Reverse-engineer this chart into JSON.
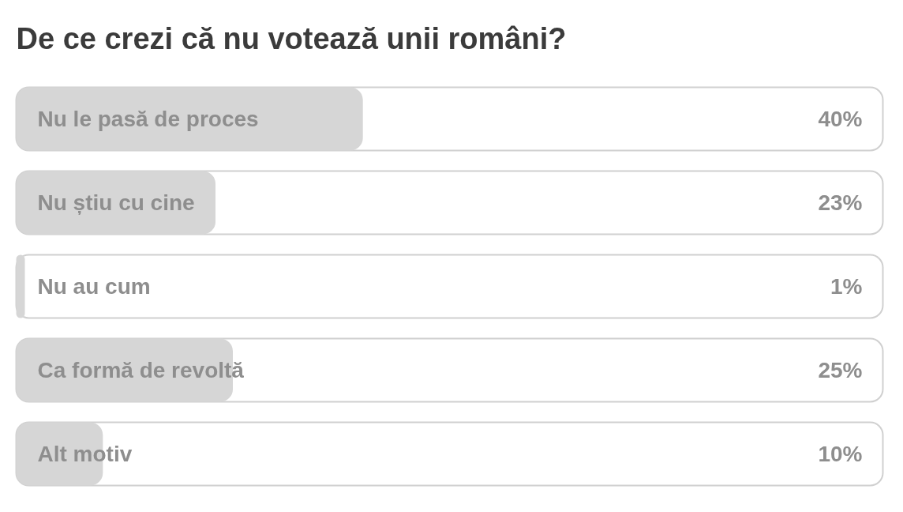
{
  "chart_data": {
    "type": "bar",
    "orientation": "horizontal",
    "title": "De ce crezi că nu votează unii români?",
    "categories": [
      "Nu le pasă de proces",
      "Nu știu cu cine",
      "Nu au cum",
      "Ca formă de revoltă",
      "Alt motiv"
    ],
    "values": [
      40,
      23,
      1,
      25,
      10
    ],
    "value_labels": [
      "40%",
      "23%",
      "1%",
      "25%",
      "10%"
    ],
    "color": "#d6d6d6",
    "xlim": [
      0,
      100
    ],
    "tick_labels": false,
    "grid": false
  }
}
